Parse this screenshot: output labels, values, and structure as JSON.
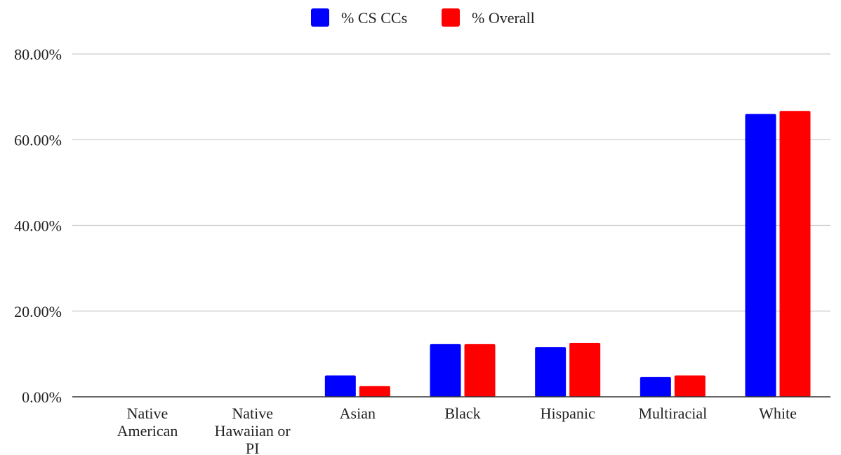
{
  "chart_data": {
    "type": "bar",
    "categories": [
      [
        "Native",
        "American"
      ],
      [
        "Native",
        "Hawaiian or",
        "PI"
      ],
      [
        "Asian"
      ],
      [
        "Black"
      ],
      [
        "Hispanic"
      ],
      [
        "Multiracial"
      ],
      [
        "White"
      ]
    ],
    "series": [
      {
        "name": "% CS CCs",
        "color": "#0000ff",
        "values": [
          0.0,
          0.0,
          5.0,
          12.3,
          11.6,
          4.6,
          66.0
        ]
      },
      {
        "name": "% Overall",
        "color": "#ff0000",
        "values": [
          0.0,
          0.0,
          2.5,
          12.3,
          12.6,
          5.0,
          66.7
        ]
      }
    ],
    "yticks": [
      "0.00%",
      "20.00%",
      "40.00%",
      "60.00%",
      "80.00%"
    ],
    "ytick_values": [
      0,
      20,
      40,
      60,
      80
    ],
    "ylim": [
      0,
      80
    ],
    "grid": true,
    "legend_position": "top-center"
  }
}
